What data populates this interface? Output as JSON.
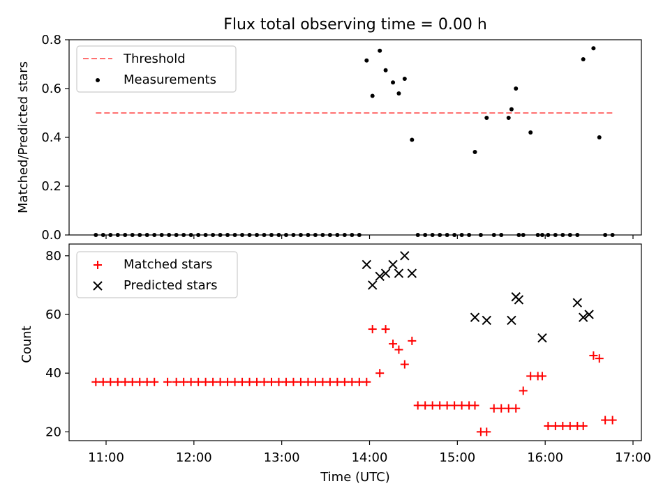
{
  "figure": {
    "title": "Flux total observing time = 0.00 h",
    "xlabel": "Time (UTC)"
  },
  "chart_data": [
    {
      "type": "scatter",
      "title": "Flux total observing time = 0.00 h",
      "xlabel": "",
      "ylabel": "Matched/Predicted stars",
      "ylim": [
        0,
        0.8
      ],
      "yticks": [
        "0.0",
        "0.2",
        "0.4",
        "0.6",
        "0.8"
      ],
      "legend_position": "top-left",
      "threshold": {
        "name": "Threshold",
        "color": "#ff7070",
        "style": "dashed",
        "x_range": [
          "10:53",
          "16:46"
        ],
        "y": 0.5
      },
      "series": [
        {
          "name": "Measurements",
          "color": "#000000",
          "x": [
            "10:53",
            "10:58",
            "11:03",
            "11:08",
            "11:13",
            "11:18",
            "11:23",
            "11:28",
            "11:33",
            "11:38",
            "11:43",
            "11:48",
            "11:53",
            "11:58",
            "12:03",
            "12:08",
            "12:13",
            "12:18",
            "12:23",
            "12:28",
            "12:33",
            "12:38",
            "12:43",
            "12:48",
            "12:53",
            "12:58",
            "13:03",
            "13:08",
            "13:13",
            "13:18",
            "13:23",
            "13:28",
            "13:33",
            "13:38",
            "13:43",
            "13:48",
            "13:53",
            "13:58",
            "14:02",
            "14:07",
            "14:11",
            "14:16",
            "14:20",
            "14:24",
            "14:29",
            "14:33",
            "14:38",
            "14:43",
            "14:48",
            "14:53",
            "14:58",
            "15:03",
            "15:08",
            "15:12",
            "15:16",
            "15:20",
            "15:25",
            "15:30",
            "15:35",
            "15:37",
            "15:40",
            "15:42",
            "15:45",
            "15:50",
            "15:55",
            "15:58",
            "16:02",
            "16:07",
            "16:12",
            "16:17",
            "16:22",
            "16:26",
            "16:33",
            "16:37",
            "16:41",
            "16:46"
          ],
          "y": [
            0,
            0,
            0,
            0,
            0,
            0,
            0,
            0,
            0,
            0,
            0,
            0,
            0,
            0,
            0,
            0,
            0,
            0,
            0,
            0,
            0,
            0,
            0,
            0,
            0,
            0,
            0,
            0,
            0,
            0,
            0,
            0,
            0,
            0,
            0,
            0,
            0,
            0.715,
            0.57,
            0.755,
            0.675,
            0.625,
            0.58,
            0.64,
            0.39,
            0,
            0,
            0,
            0,
            0,
            0,
            0,
            0,
            0.34,
            0,
            0.48,
            0,
            0,
            0.48,
            0.515,
            0.6,
            0,
            0,
            0.42,
            0,
            0,
            0,
            0,
            0,
            0,
            0,
            0.72,
            0.765,
            0.4,
            0,
            0
          ]
        }
      ]
    },
    {
      "type": "scatter",
      "xlabel": "Time (UTC)",
      "ylabel": "Count",
      "ylim": [
        17,
        84
      ],
      "yticks": [
        "20",
        "40",
        "60",
        "80"
      ],
      "xticks": [
        "11:00",
        "12:00",
        "13:00",
        "14:00",
        "15:00",
        "16:00",
        "17:00"
      ],
      "legend_position": "top-left",
      "series": [
        {
          "name": "Matched stars",
          "marker": "plus",
          "color": "#ff0000",
          "x": [
            "10:53",
            "10:58",
            "11:03",
            "11:08",
            "11:13",
            "11:18",
            "11:23",
            "11:28",
            "11:33",
            "11:42",
            "11:48",
            "11:53",
            "11:58",
            "12:03",
            "12:08",
            "12:13",
            "12:18",
            "12:23",
            "12:28",
            "12:33",
            "12:38",
            "12:43",
            "12:48",
            "12:53",
            "12:58",
            "13:03",
            "13:08",
            "13:13",
            "13:18",
            "13:23",
            "13:28",
            "13:33",
            "13:38",
            "13:43",
            "13:48",
            "13:53",
            "13:58",
            "14:02",
            "14:07",
            "14:11",
            "14:16",
            "14:20",
            "14:24",
            "14:29",
            "14:33",
            "14:38",
            "14:43",
            "14:48",
            "14:53",
            "14:58",
            "15:03",
            "15:08",
            "15:12",
            "15:16",
            "15:20",
            "15:25",
            "15:30",
            "15:35",
            "15:40",
            "15:45",
            "15:50",
            "15:55",
            "15:58",
            "16:02",
            "16:07",
            "16:12",
            "16:17",
            "16:22",
            "16:26",
            "16:33",
            "16:37",
            "16:41",
            "16:46"
          ],
          "y": [
            37,
            37,
            37,
            37,
            37,
            37,
            37,
            37,
            37,
            37,
            37,
            37,
            37,
            37,
            37,
            37,
            37,
            37,
            37,
            37,
            37,
            37,
            37,
            37,
            37,
            37,
            37,
            37,
            37,
            37,
            37,
            37,
            37,
            37,
            37,
            37,
            37,
            55,
            40,
            55,
            50,
            48,
            43,
            51,
            29,
            29,
            29,
            29,
            29,
            29,
            29,
            29,
            29,
            20,
            20,
            28,
            28,
            28,
            28,
            34,
            39,
            39,
            39,
            22,
            22,
            22,
            22,
            22,
            22,
            46,
            45,
            24,
            24
          ]
        },
        {
          "name": "Predicted stars",
          "marker": "x",
          "color": "#000000",
          "x": [
            "13:58",
            "14:02",
            "14:07",
            "14:11",
            "14:16",
            "14:20",
            "14:24",
            "14:29",
            "15:12",
            "15:20",
            "15:37",
            "15:40",
            "15:42",
            "15:58",
            "16:22",
            "16:26",
            "16:30"
          ],
          "y": [
            77,
            70,
            73,
            74,
            77,
            74,
            80,
            74,
            59,
            58,
            58,
            66,
            65,
            52,
            64,
            59,
            60
          ]
        }
      ]
    }
  ]
}
